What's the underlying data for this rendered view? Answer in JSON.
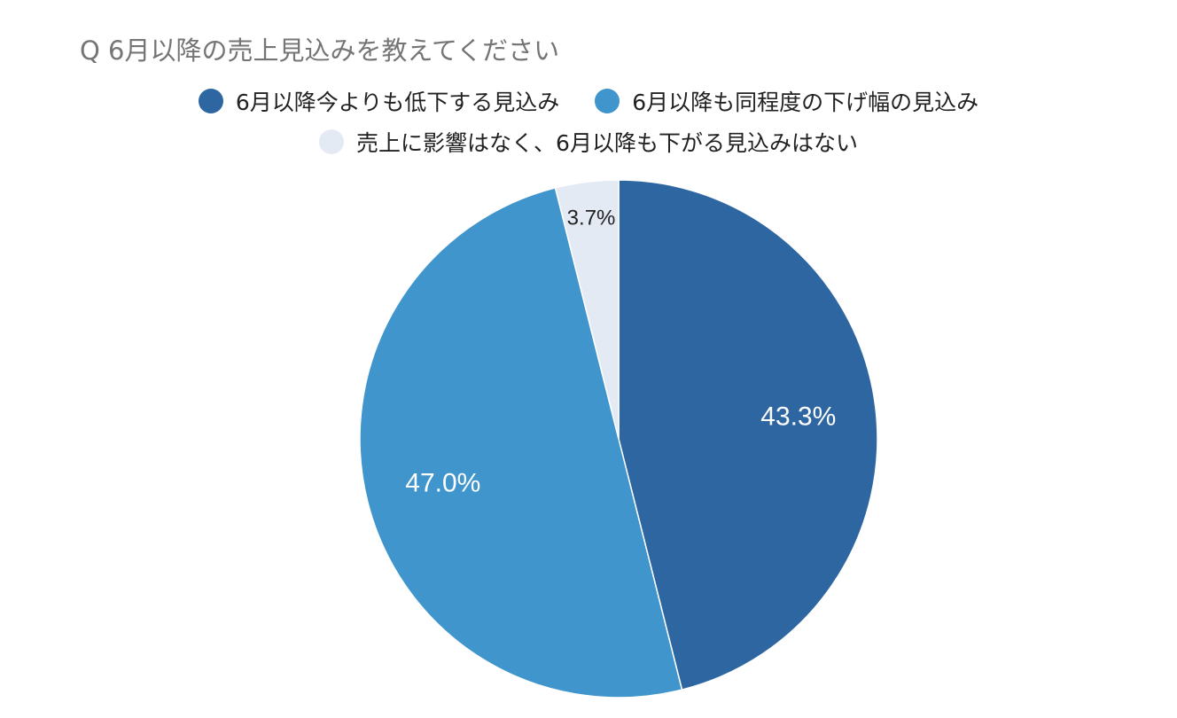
{
  "title": "Q 6月以降の売上見込みを教えてください",
  "chart_data": {
    "type": "pie",
    "title": "Q 6月以降の売上見込みを教えてください",
    "legend_position": "top",
    "slices": [
      {
        "label": "6月以降今よりも低下する見込み",
        "value": 43.3,
        "display": "43.3%",
        "color": "#2e66a2",
        "label_color": "#ffffff"
      },
      {
        "label": "6月以降も同程度の下げ幅の見込み",
        "value": 47.0,
        "display": "47.0%",
        "color": "#3f95cc",
        "label_color": "#ffffff"
      },
      {
        "label": "売上に影響はなく、6月以降も下がる見込みはない",
        "value": 3.7,
        "display": "3.7%",
        "color": "#e4eaf3",
        "label_color": "#222222"
      }
    ]
  }
}
